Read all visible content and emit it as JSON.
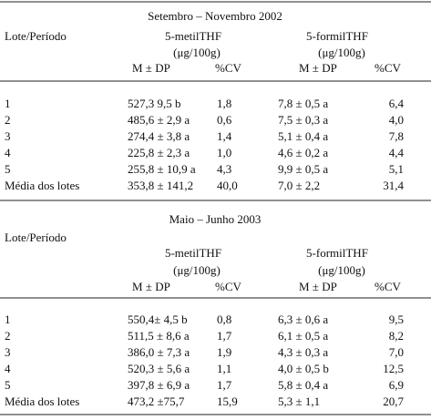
{
  "sections": [
    {
      "period": "Setembro – Novembro 2002",
      "row_header": "Lote/Período",
      "col_groups": [
        {
          "name": "5-metilTHF",
          "unit": "(μg/100g)",
          "cols": [
            "M ± DP",
            "%CV"
          ]
        },
        {
          "name": "5-formilTHF",
          "unit": "(μg/100g)",
          "cols": [
            "M ± DP",
            "%CV"
          ]
        }
      ],
      "rows": [
        [
          "1",
          "527,3  9,5 b",
          "1,8",
          "7,8 ± 0,5 a",
          "6,4"
        ],
        [
          "2",
          "485,6 ± 2,9 a",
          "0,6",
          "7,5 ± 0,3 a",
          "4,0"
        ],
        [
          "3",
          "274,4 ± 3,8 a",
          "1,4",
          "5,1 ± 0,4 a",
          "7,8"
        ],
        [
          "4",
          "225,8 ± 2,3 a",
          "1,0",
          "4,6 ± 0,2 a",
          "4,4"
        ],
        [
          "5",
          "255,8 ± 10,9 a",
          "4,3",
          "9,9 ± 0,5 a",
          "5,1"
        ],
        [
          "Média dos lotes",
          "353,8 ± 141,2",
          "40,0",
          "7,0 ± 2,2",
          "31,4"
        ]
      ]
    },
    {
      "period": "Maio – Junho 2003",
      "row_header": "Lote/Período",
      "col_groups": [
        {
          "name": "5-metilTHF",
          "unit": "(μg/100g)",
          "cols": [
            "M ± DP",
            "%CV"
          ]
        },
        {
          "name": "5-formilTHF",
          "unit": "(μg/100g)",
          "cols": [
            "M ± DP",
            "%CV"
          ]
        }
      ],
      "rows": [
        [
          "1",
          "550,4± 4,5 b",
          "0,8",
          "6,3 ± 0,6 a",
          "9,5"
        ],
        [
          "2",
          "511,5 ± 8,6 a",
          "1,7",
          "6,1 ± 0,5 a",
          "8,2"
        ],
        [
          "3",
          "386,0 ± 7,3 a",
          "1,9",
          "4,3 ± 0,3 a",
          "7,0"
        ],
        [
          "4",
          "520,3 ± 5,6 a",
          "1,1",
          "4,0 ± 0,5 b",
          "12,5"
        ],
        [
          "5",
          "397,8 ± 6,9 a",
          "1,7",
          "5,8 ± 0,4 a",
          "6,9"
        ],
        [
          "Média dos lotes",
          "473,2 ±75,7",
          "15,9",
          "5,3 ± 1,1",
          "20,7"
        ]
      ]
    }
  ]
}
